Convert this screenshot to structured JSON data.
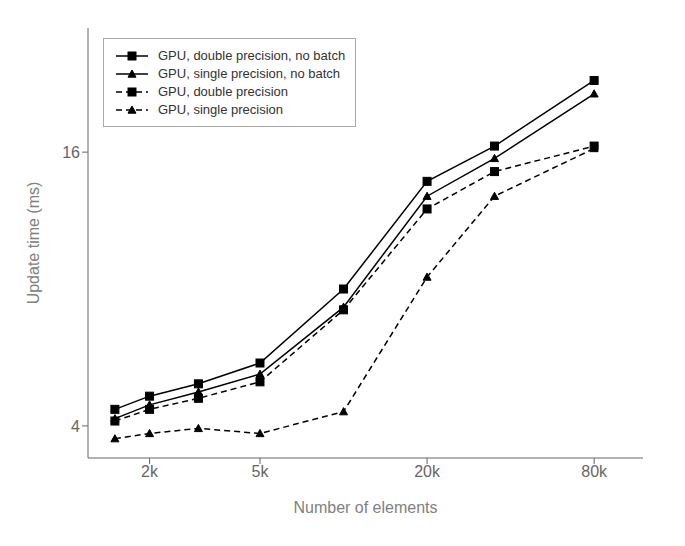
{
  "chart_data": {
    "type": "line",
    "xlabel": "Number of elements",
    "ylabel": "Update time (ms)",
    "x": [
      1500,
      2000,
      3000,
      5000,
      10000,
      20000,
      35000,
      80000
    ],
    "series": [
      {
        "name": "GPU, double precision, no batch",
        "color": "#000000",
        "marker": "square",
        "line_style": "solid",
        "values": [
          4.35,
          4.65,
          4.95,
          5.5,
          8.0,
          13.8,
          16.5,
          23.0
        ]
      },
      {
        "name": "GPU, single precision, no batch",
        "color": "#000000",
        "marker": "triangle",
        "line_style": "solid",
        "values": [
          4.15,
          4.45,
          4.75,
          5.2,
          7.3,
          12.8,
          15.5,
          21.5
        ]
      },
      {
        "name": "GPU, double precision",
        "color": "#000000",
        "marker": "square",
        "line_style": "dashed",
        "values": [
          4.1,
          4.35,
          4.6,
          5.0,
          7.2,
          12.0,
          14.5,
          16.5
        ]
      },
      {
        "name": "GPU, single precision",
        "color": "#000000",
        "marker": "triangle",
        "line_style": "dashed",
        "values": [
          3.75,
          3.85,
          3.95,
          3.85,
          4.3,
          8.5,
          12.8,
          16.3
        ]
      }
    ],
    "xlim": [
      1200,
      120000
    ],
    "ylim": [
      3.4,
      30
    ],
    "xticks": [
      {
        "value": 2000,
        "label": "2k"
      },
      {
        "value": 5000,
        "label": "5k"
      },
      {
        "value": 20000,
        "label": "20k"
      },
      {
        "value": 80000,
        "label": "80k"
      }
    ],
    "yticks": [
      4,
      16
    ],
    "log": true,
    "grid": false,
    "legend": "upper left"
  }
}
